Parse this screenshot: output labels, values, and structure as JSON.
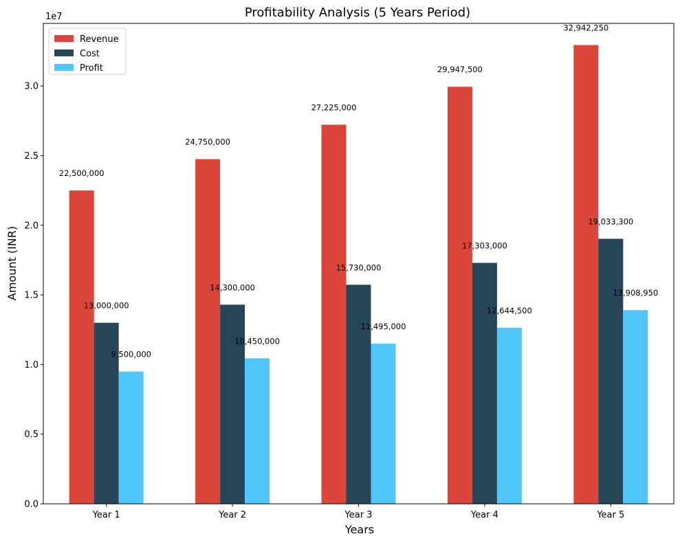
{
  "chart_data": {
    "type": "bar",
    "title": "Profitability Analysis (5 Years Period)",
    "xlabel": "Years",
    "ylabel": "Amount (INR)",
    "y_offset_label": "1e7",
    "categories": [
      "Year 1",
      "Year 2",
      "Year 3",
      "Year 4",
      "Year 5"
    ],
    "series": [
      {
        "name": "Revenue",
        "color": "#db463b",
        "values": [
          22500000,
          24750000,
          27225000,
          29947500,
          32942250
        ],
        "labels": [
          "22,500,000",
          "24,750,000",
          "27,225,000",
          "29,947,500",
          "32,942,250"
        ]
      },
      {
        "name": "Cost",
        "color": "#264556",
        "values": [
          13000000,
          14300000,
          15730000,
          17303000,
          19033300
        ],
        "labels": [
          "13,000,000",
          "14,300,000",
          "15,730,000",
          "17,303,000",
          "19,033,300"
        ]
      },
      {
        "name": "Profit",
        "color": "#51c6fa",
        "values": [
          9500000,
          10450000,
          11495000,
          12644500,
          13908950
        ],
        "labels": [
          "9,500,000",
          "10,450,000",
          "11,495,000",
          "12,644,500",
          "13,908,950"
        ]
      }
    ],
    "ylim": [
      0,
      34500000
    ],
    "yticks": [
      0,
      5000000,
      10000000,
      15000000,
      20000000,
      25000000,
      30000000
    ],
    "ytick_labels": [
      "0.0",
      "0.5",
      "1.0",
      "1.5",
      "2.0",
      "2.5",
      "3.0"
    ],
    "grid": false,
    "legend_position": "top-left"
  }
}
